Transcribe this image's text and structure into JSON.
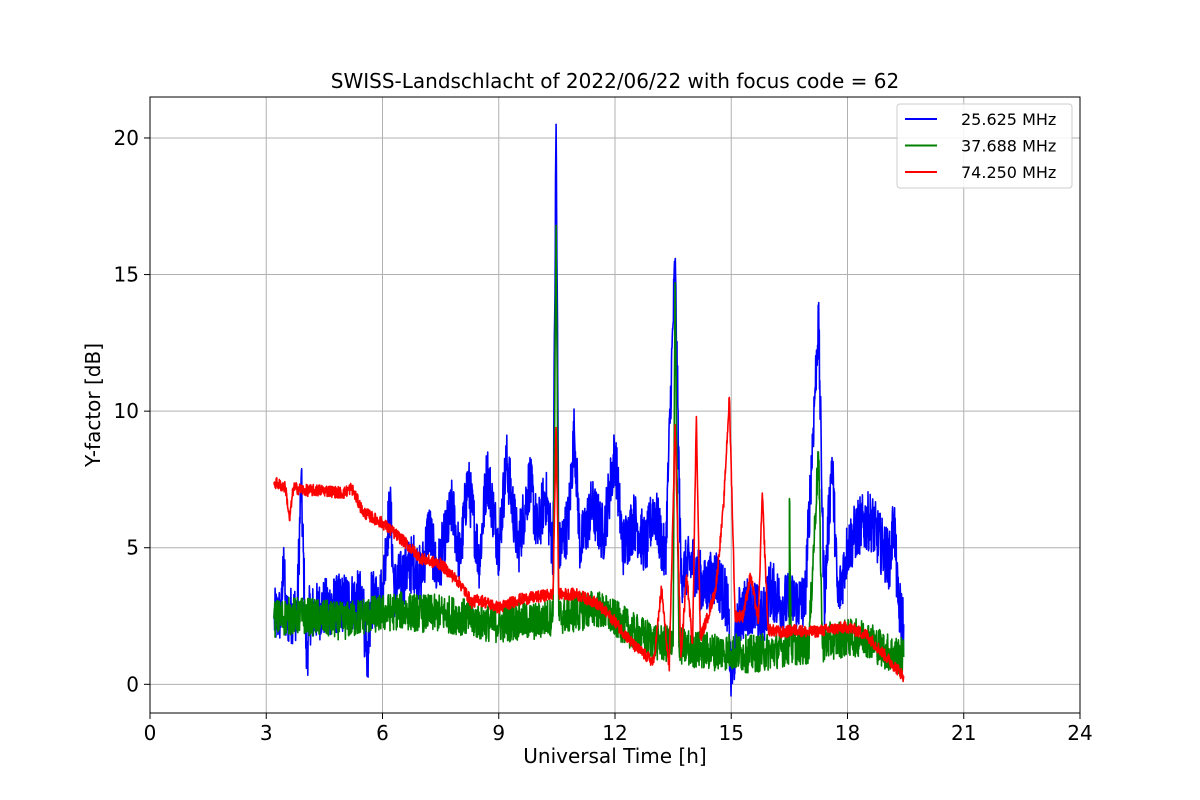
{
  "chart_data": {
    "type": "line",
    "title": "SWISS-Landschlacht of 2022/06/22 with focus code = 62",
    "xlabel": "Universal Time [h]",
    "ylabel": "Y-factor [dB]",
    "xlim": [
      0,
      24
    ],
    "ylim": [
      -1.05,
      21.5
    ],
    "xticks": [
      0,
      3,
      6,
      9,
      12,
      15,
      18,
      21,
      24
    ],
    "yticks": [
      0,
      5,
      10,
      15,
      20
    ],
    "grid": true,
    "legend_position": "top-right",
    "series": [
      {
        "name": "25.625 MHz",
        "color": "#0000ff",
        "points": [
          [
            3.2,
            2.4
          ],
          [
            3.4,
            2.6
          ],
          [
            3.45,
            5.0
          ],
          [
            3.5,
            2.4
          ],
          [
            3.8,
            2.7
          ],
          [
            3.9,
            7.5
          ],
          [
            4.0,
            2.6
          ],
          [
            4.05,
            0.6
          ],
          [
            4.1,
            2.5
          ],
          [
            4.5,
            2.8
          ],
          [
            5.0,
            3.0
          ],
          [
            5.5,
            3.1
          ],
          [
            5.6,
            0.3
          ],
          [
            5.7,
            3.0
          ],
          [
            6.0,
            3.3
          ],
          [
            6.1,
            5.3
          ],
          [
            6.2,
            6.5
          ],
          [
            6.3,
            3.5
          ],
          [
            6.8,
            4.5
          ],
          [
            7.0,
            3.9
          ],
          [
            7.2,
            5.8
          ],
          [
            7.4,
            4.0
          ],
          [
            7.8,
            6.5
          ],
          [
            8.0,
            4.5
          ],
          [
            8.2,
            7.5
          ],
          [
            8.5,
            4.5
          ],
          [
            8.7,
            7.8
          ],
          [
            9.0,
            5.0
          ],
          [
            9.2,
            8.2
          ],
          [
            9.5,
            5.0
          ],
          [
            9.8,
            7.5
          ],
          [
            10.0,
            5.5
          ],
          [
            10.2,
            7.0
          ],
          [
            10.4,
            5.0
          ],
          [
            10.48,
            20.5
          ],
          [
            10.55,
            4.8
          ],
          [
            10.8,
            6.0
          ],
          [
            10.95,
            9.3
          ],
          [
            11.1,
            5.0
          ],
          [
            11.4,
            6.5
          ],
          [
            11.7,
            5.5
          ],
          [
            12.0,
            8.5
          ],
          [
            12.2,
            5.0
          ],
          [
            12.5,
            6.0
          ],
          [
            12.8,
            5.0
          ],
          [
            13.0,
            6.5
          ],
          [
            13.3,
            4.5
          ],
          [
            13.55,
            15.5
          ],
          [
            13.7,
            4.0
          ],
          [
            14.0,
            4.5
          ],
          [
            14.3,
            3.5
          ],
          [
            14.6,
            4.0
          ],
          [
            14.9,
            3.0
          ],
          [
            15.0,
            0.1
          ],
          [
            15.2,
            2.5
          ],
          [
            15.5,
            3.0
          ],
          [
            15.8,
            2.3
          ],
          [
            16.0,
            3.5
          ],
          [
            16.3,
            3.0
          ],
          [
            16.6,
            3.0
          ],
          [
            16.9,
            3.0
          ],
          [
            17.25,
            13.4
          ],
          [
            17.4,
            3.0
          ],
          [
            17.6,
            8.3
          ],
          [
            17.75,
            3.0
          ],
          [
            18.0,
            5.0
          ],
          [
            18.3,
            5.8
          ],
          [
            18.6,
            6.0
          ],
          [
            18.9,
            5.0
          ],
          [
            19.1,
            4.5
          ],
          [
            19.2,
            6.2
          ],
          [
            19.3,
            3.0
          ],
          [
            19.45,
            2.2
          ]
        ]
      },
      {
        "name": "37.688 MHz",
        "color": "#008000",
        "points": [
          [
            3.2,
            2.4
          ],
          [
            3.6,
            2.5
          ],
          [
            4.0,
            2.5
          ],
          [
            4.5,
            2.4
          ],
          [
            5.0,
            2.3
          ],
          [
            5.5,
            2.5
          ],
          [
            6.0,
            2.6
          ],
          [
            6.5,
            2.7
          ],
          [
            7.0,
            2.6
          ],
          [
            7.5,
            2.6
          ],
          [
            8.0,
            2.5
          ],
          [
            8.5,
            2.3
          ],
          [
            9.0,
            2.2
          ],
          [
            9.5,
            2.3
          ],
          [
            10.0,
            2.3
          ],
          [
            10.4,
            2.5
          ],
          [
            10.48,
            16.8
          ],
          [
            10.55,
            2.5
          ],
          [
            11.0,
            2.6
          ],
          [
            11.5,
            2.8
          ],
          [
            12.0,
            2.4
          ],
          [
            12.5,
            1.9
          ],
          [
            13.0,
            1.6
          ],
          [
            13.5,
            1.4
          ],
          [
            13.55,
            14.7
          ],
          [
            13.65,
            1.4
          ],
          [
            14.0,
            1.3
          ],
          [
            14.5,
            1.2
          ],
          [
            15.0,
            1.2
          ],
          [
            15.5,
            1.1
          ],
          [
            16.0,
            1.2
          ],
          [
            16.5,
            1.4
          ],
          [
            16.5,
            6.8
          ],
          [
            16.55,
            1.4
          ],
          [
            17.0,
            1.4
          ],
          [
            17.25,
            8.5
          ],
          [
            17.35,
            1.5
          ],
          [
            17.6,
            1.6
          ],
          [
            18.0,
            1.7
          ],
          [
            18.5,
            1.7
          ],
          [
            19.0,
            1.2
          ],
          [
            19.45,
            1.0
          ]
        ]
      },
      {
        "name": "74.250 MHz",
        "color": "#ff0000",
        "points": [
          [
            3.2,
            7.4
          ],
          [
            3.5,
            7.2
          ],
          [
            3.6,
            6.0
          ],
          [
            3.7,
            7.2
          ],
          [
            4.0,
            7.1
          ],
          [
            4.5,
            7.1
          ],
          [
            5.0,
            7.0
          ],
          [
            5.2,
            7.2
          ],
          [
            5.5,
            6.3
          ],
          [
            6.0,
            5.9
          ],
          [
            6.5,
            5.3
          ],
          [
            7.0,
            4.6
          ],
          [
            7.5,
            4.4
          ],
          [
            8.0,
            3.7
          ],
          [
            8.3,
            3.0
          ],
          [
            8.5,
            3.1
          ],
          [
            9.0,
            2.8
          ],
          [
            9.5,
            3.1
          ],
          [
            10.0,
            3.2
          ],
          [
            10.4,
            3.3
          ],
          [
            10.48,
            9.4
          ],
          [
            10.55,
            3.3
          ],
          [
            11.0,
            3.3
          ],
          [
            11.5,
            3.0
          ],
          [
            12.0,
            2.3
          ],
          [
            12.5,
            1.4
          ],
          [
            13.0,
            0.8
          ],
          [
            13.2,
            3.5
          ],
          [
            13.4,
            0.5
          ],
          [
            13.55,
            9.5
          ],
          [
            13.7,
            1.0
          ],
          [
            13.85,
            4.0
          ],
          [
            14.0,
            1.5
          ],
          [
            14.1,
            9.8
          ],
          [
            14.2,
            1.7
          ],
          [
            14.4,
            2.5
          ],
          [
            14.6,
            3.5
          ],
          [
            14.8,
            6.5
          ],
          [
            14.95,
            10.5
          ],
          [
            15.1,
            2.5
          ],
          [
            15.3,
            2.5
          ],
          [
            15.5,
            4.0
          ],
          [
            15.7,
            2.3
          ],
          [
            15.8,
            7.0
          ],
          [
            15.95,
            2.0
          ],
          [
            16.3,
            1.9
          ],
          [
            16.7,
            2.0
          ],
          [
            17.0,
            1.9
          ],
          [
            17.5,
            2.0
          ],
          [
            18.0,
            2.1
          ],
          [
            18.5,
            1.8
          ],
          [
            19.0,
            1.0
          ],
          [
            19.45,
            0.3
          ]
        ]
      }
    ]
  }
}
